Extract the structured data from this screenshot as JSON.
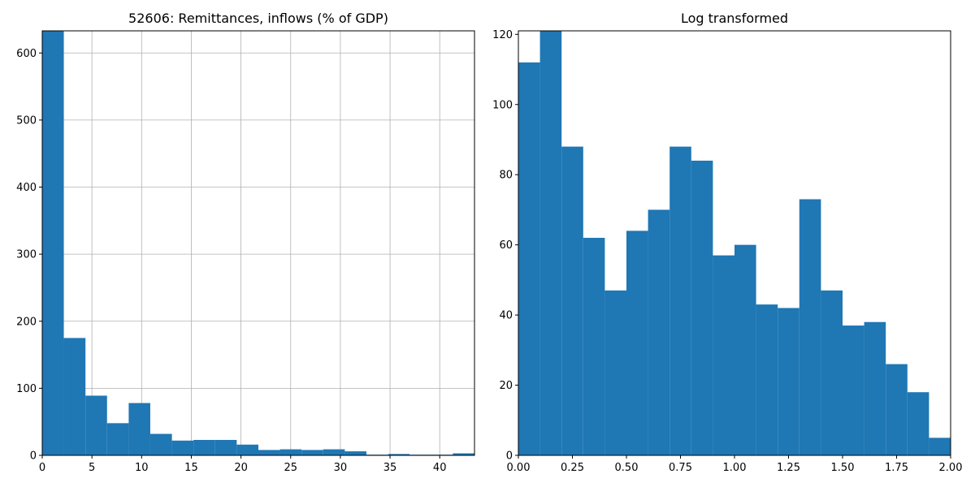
{
  "chart_data": [
    {
      "type": "bar",
      "title": "52606: Remittances, inflows (% of GDP)",
      "xlabel": "",
      "ylabel": "",
      "xlim": [
        0,
        43.5
      ],
      "ylim": [
        0,
        633
      ],
      "xticks": [
        0,
        5,
        10,
        15,
        20,
        25,
        30,
        35,
        40
      ],
      "yticks": [
        0,
        100,
        200,
        300,
        400,
        500,
        600
      ],
      "grid": true,
      "color": "#1f77b4",
      "bin_edges": [
        0,
        2.17,
        4.35,
        6.52,
        8.7,
        10.87,
        13.05,
        15.22,
        17.4,
        19.57,
        21.75,
        23.92,
        26.1,
        28.27,
        30.45,
        32.62,
        34.8,
        36.97,
        39.15,
        41.32,
        43.5
      ],
      "values": [
        633,
        175,
        89,
        48,
        78,
        32,
        22,
        23,
        23,
        16,
        8,
        9,
        8,
        9,
        6,
        1,
        2,
        1,
        1,
        3
      ]
    },
    {
      "type": "bar",
      "title": "Log transformed",
      "xlabel": "",
      "ylabel": "",
      "xlim": [
        0,
        2.0
      ],
      "ylim": [
        0,
        121
      ],
      "xticks": [
        0.0,
        0.25,
        0.5,
        0.75,
        1.0,
        1.25,
        1.5,
        1.75,
        2.0
      ],
      "xtick_labels": [
        "0.00",
        "0.25",
        "0.50",
        "0.75",
        "1.00",
        "1.25",
        "1.50",
        "1.75",
        "2.00"
      ],
      "yticks": [
        0,
        20,
        40,
        60,
        80,
        100,
        120
      ],
      "grid": false,
      "color": "#1f77b4",
      "bin_edges": [
        0,
        0.1,
        0.2,
        0.3,
        0.4,
        0.5,
        0.6,
        0.7,
        0.8,
        0.9,
        1.0,
        1.1,
        1.2,
        1.3,
        1.4,
        1.5,
        1.6,
        1.7,
        1.8,
        1.9,
        2.0
      ],
      "values": [
        112,
        121,
        88,
        62,
        47,
        64,
        70,
        88,
        84,
        57,
        60,
        43,
        42,
        73,
        47,
        37,
        38,
        26,
        18,
        5
      ]
    }
  ]
}
